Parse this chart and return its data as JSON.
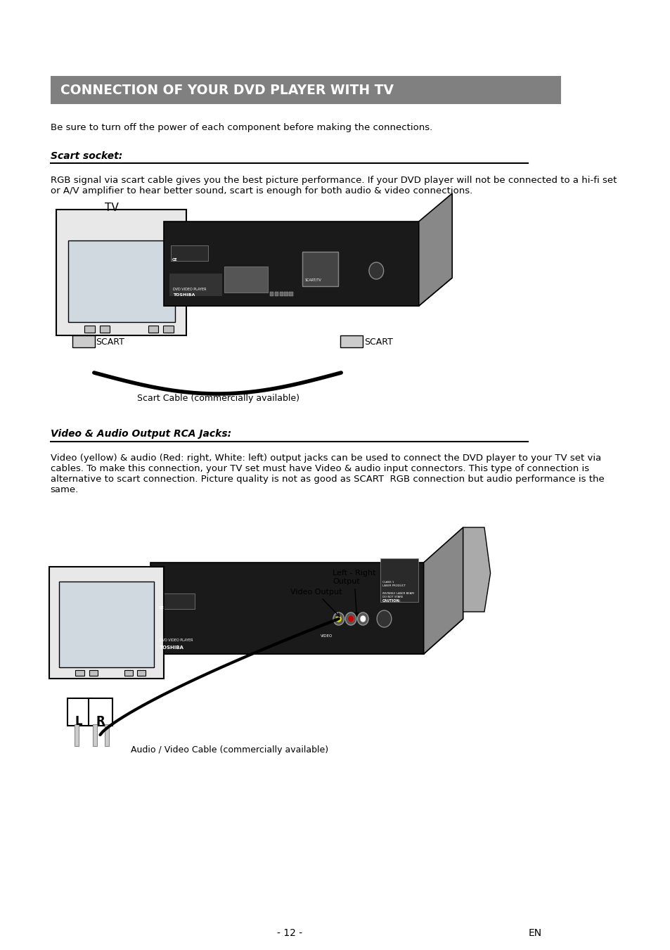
{
  "title": "CONNECTION OF YOUR DVD PLAYER WITH TV",
  "title_bg_color": "#808080",
  "title_text_color": "#ffffff",
  "page_bg": "#ffffff",
  "text_color": "#000000",
  "intro_text": "Be sure to turn off the power of each component before making the connections.",
  "section1_title": "Scart socket:",
  "section1_body": "RGB signal via scart cable gives you the best picture performance. If your DVD player will not be connected to a hi-fi set\nor A/V amplifier to hear better sound, scart is enough for both audio & video connections.",
  "scart_cable_label": "Scart Cable (commercially available)",
  "section2_title": "Video & Audio Output RCA Jacks:",
  "section2_body": "Video (yellow) & audio (Red: right, White: left) output jacks can be used to connect the DVD player to your TV set via\ncables. To make this connection, your TV set must have Video & audio input connectors. This type of connection is\nalternative to scart connection. Picture quality is not as good as SCART  RGB connection but audio performance is the\nsame.",
  "av_cable_label": "Audio / Video Cable (commercially available)",
  "video_output_label": "Video Output",
  "lr_output_label": "Left - Right\nOutput",
  "tv_label": "TV",
  "scart_label_left": "SCART",
  "scart_label_right": "SCART",
  "page_number": "- 12 -",
  "page_lang": "EN"
}
